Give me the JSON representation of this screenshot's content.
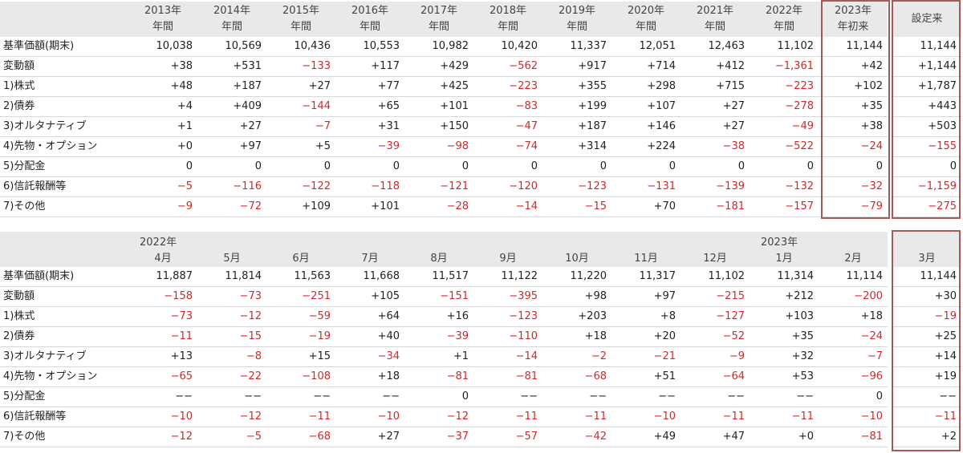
{
  "table1": {
    "headers": [
      {
        "line1": "2013年",
        "line2": "年間"
      },
      {
        "line1": "2014年",
        "line2": "年間"
      },
      {
        "line1": "2015年",
        "line2": "年間"
      },
      {
        "line1": "2016年",
        "line2": "年間"
      },
      {
        "line1": "2017年",
        "line2": "年間"
      },
      {
        "line1": "2018年",
        "line2": "年間"
      },
      {
        "line1": "2019年",
        "line2": "年間"
      },
      {
        "line1": "2020年",
        "line2": "年間"
      },
      {
        "line1": "2021年",
        "line2": "年間"
      },
      {
        "line1": "2022年",
        "line2": "年間"
      },
      {
        "line1": "2023年",
        "line2": "年初来"
      },
      {
        "line1": "",
        "line2": "設定来"
      }
    ],
    "rows": [
      {
        "label": "基準価額(期末)",
        "values": [
          "10,038",
          "10,569",
          "10,436",
          "10,553",
          "10,982",
          "10,420",
          "11,337",
          "12,051",
          "12,463",
          "11,102",
          "11,144",
          "11,144"
        ]
      },
      {
        "label": "変動額",
        "values": [
          "+38",
          "+531",
          "−133",
          "+117",
          "+429",
          "−562",
          "+917",
          "+714",
          "+412",
          "−1,361",
          "+42",
          "+1,144"
        ]
      },
      {
        "label": "1)株式",
        "values": [
          "+48",
          "+187",
          "+27",
          "+77",
          "+425",
          "−223",
          "+355",
          "+298",
          "+715",
          "−223",
          "+102",
          "+1,787"
        ]
      },
      {
        "label": "2)債券",
        "values": [
          "+4",
          "+409",
          "−144",
          "+65",
          "+101",
          "−83",
          "+199",
          "+107",
          "+27",
          "−278",
          "+35",
          "+443"
        ]
      },
      {
        "label": "3)オルタナティブ",
        "values": [
          "+1",
          "+27",
          "−7",
          "+31",
          "+150",
          "−47",
          "+187",
          "+146",
          "+27",
          "−49",
          "+38",
          "+503"
        ]
      },
      {
        "label": "4)先物・オプション",
        "values": [
          "+0",
          "+97",
          "+5",
          "−39",
          "−98",
          "−74",
          "+314",
          "+224",
          "−38",
          "−522",
          "−24",
          "−155"
        ]
      },
      {
        "label": "5)分配金",
        "values": [
          "0",
          "0",
          "0",
          "0",
          "0",
          "0",
          "0",
          "0",
          "0",
          "0",
          "0",
          "0"
        ]
      },
      {
        "label": "6)信託報酬等",
        "values": [
          "−5",
          "−116",
          "−122",
          "−118",
          "−121",
          "−120",
          "−123",
          "−131",
          "−139",
          "−132",
          "−32",
          "−1,159"
        ]
      },
      {
        "label": "7)その他",
        "values": [
          "−9",
          "−72",
          "+109",
          "+101",
          "−28",
          "−14",
          "−15",
          "+70",
          "−181",
          "−157",
          "−79",
          "−275"
        ]
      }
    ]
  },
  "table2": {
    "year_left": "2022年",
    "year_right": "2023年",
    "months": [
      "4月",
      "5月",
      "6月",
      "7月",
      "8月",
      "9月",
      "10月",
      "11月",
      "12月",
      "1月",
      "2月",
      "3月"
    ],
    "rows": [
      {
        "label": "基準価額(期末)",
        "values": [
          "11,887",
          "11,814",
          "11,563",
          "11,668",
          "11,517",
          "11,122",
          "11,220",
          "11,317",
          "11,102",
          "11,314",
          "11,114",
          "11,144"
        ]
      },
      {
        "label": "変動額",
        "values": [
          "−158",
          "−73",
          "−251",
          "+105",
          "−151",
          "−395",
          "+98",
          "+97",
          "−215",
          "+212",
          "−200",
          "+30"
        ]
      },
      {
        "label": "1)株式",
        "values": [
          "−73",
          "−12",
          "−59",
          "+64",
          "+16",
          "−123",
          "+203",
          "+8",
          "−127",
          "+103",
          "+18",
          "−19"
        ]
      },
      {
        "label": "2)債券",
        "values": [
          "−11",
          "−15",
          "−19",
          "+40",
          "−39",
          "−110",
          "+18",
          "+20",
          "−52",
          "+35",
          "−24",
          "+25"
        ]
      },
      {
        "label": "3)オルタナティブ",
        "values": [
          "+13",
          "−8",
          "+15",
          "−34",
          "+1",
          "−14",
          "−2",
          "−21",
          "−9",
          "+32",
          "−7",
          "+14"
        ]
      },
      {
        "label": "4)先物・オプション",
        "values": [
          "−65",
          "−22",
          "−108",
          "+18",
          "−81",
          "−81",
          "−68",
          "+51",
          "−64",
          "+53",
          "−96",
          "+19"
        ]
      },
      {
        "label": "5)分配金",
        "values": [
          "−−",
          "−−",
          "−−",
          "−−",
          "0",
          "−−",
          "−−",
          "−−",
          "−−",
          "−−",
          "0",
          "−−"
        ]
      },
      {
        "label": "6)信託報酬等",
        "values": [
          "−10",
          "−12",
          "−11",
          "−10",
          "−12",
          "−11",
          "−11",
          "−10",
          "−11",
          "−11",
          "−10",
          "−11"
        ]
      },
      {
        "label": "7)その他",
        "values": [
          "−12",
          "−5",
          "−68",
          "+27",
          "−37",
          "−57",
          "−42",
          "+49",
          "+47",
          "+0",
          "−81",
          "+2"
        ]
      }
    ]
  },
  "colors": {
    "negative": "#d62728",
    "header_bg": "#e9e9e9",
    "highlight_box": "#a55a5a"
  }
}
